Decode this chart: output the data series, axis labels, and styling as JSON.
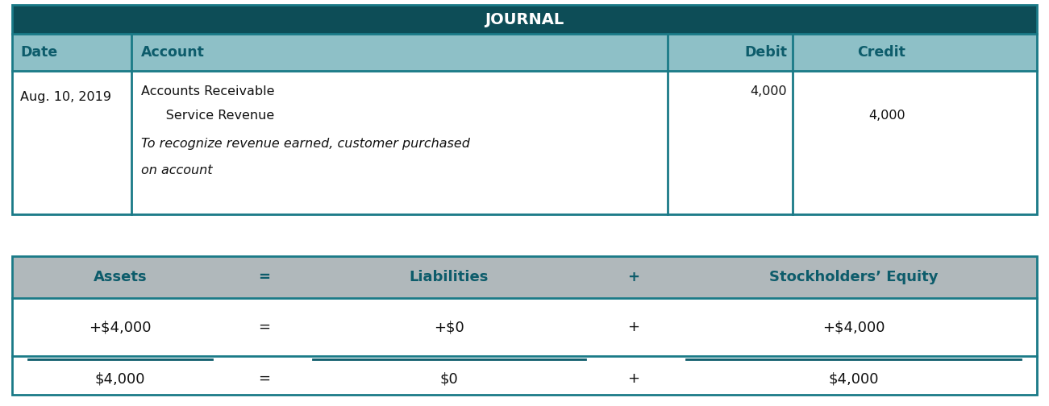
{
  "title": "JOURNAL",
  "title_bg": "#0d4d57",
  "title_color": "#ffffff",
  "header_bg": "#8ec0c7",
  "header_color": "#0d5c6b",
  "row_bg": "#ffffff",
  "border_color": "#1a7a87",
  "col_headers": [
    "Date",
    "Account",
    "Debit",
    "Credit"
  ],
  "date": "Aug. 10, 2019",
  "account_line1": "Accounts Receivable",
  "account_line2": "      Service Revenue",
  "account_line3_italic": "To recognize revenue earned, customer purchased",
  "account_line4_italic": "on account",
  "debit_value": "4,000",
  "credit_value": "4,000",
  "eq_headers": [
    "Assets",
    "=",
    "Liabilities",
    "+",
    "Stockholders’ Equity"
  ],
  "eq_values_row1": [
    "+$4,000",
    "=",
    "+$0",
    "+",
    "+$4,000"
  ],
  "eq_values_row2": [
    "$4,000",
    "=",
    "$0",
    "+",
    "$4,000"
  ],
  "dark_teal": "#0d5c6b",
  "light_teal": "#8ec0c7",
  "eq_header_bg": "#b0b8bb",
  "white": "#ffffff",
  "gray_bg": "#c8cdd0"
}
